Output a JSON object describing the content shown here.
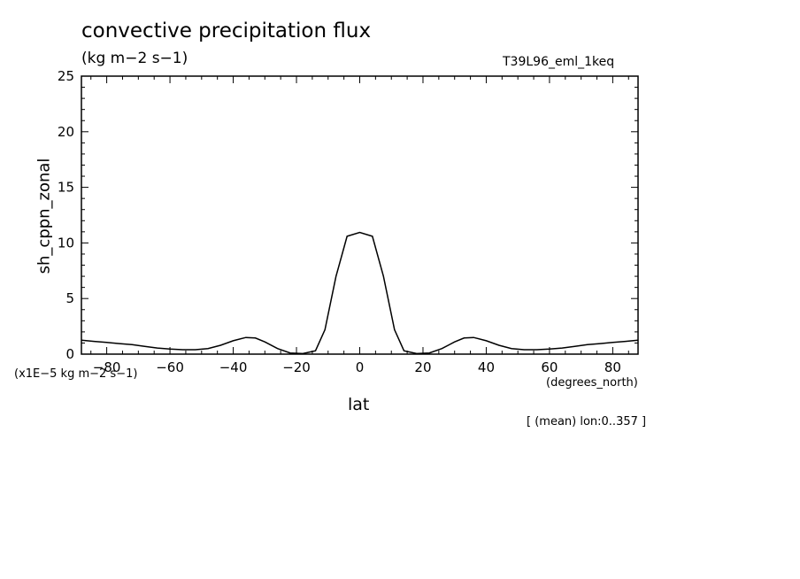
{
  "header": {
    "title": "convective precipitation flux",
    "units": "(kg m−2 s−1)",
    "run_id": "T39L96_eml_1keq"
  },
  "axes": {
    "ylabel": "sh_cppn_zonal",
    "yscale": "(x1E−5 kg m−2 s−1)",
    "xlabel": "lat",
    "xunits": "(degrees_north)"
  },
  "footnote": "[ (mean) lon:0..357 ]",
  "chart_data": {
    "type": "line",
    "title": "convective precipitation flux",
    "xlabel": "lat",
    "ylabel": "sh_cppn_zonal",
    "xlim": [
      -88,
      88
    ],
    "ylim": [
      0,
      25
    ],
    "xticks": [
      -80,
      -60,
      -40,
      -20,
      0,
      20,
      40,
      60,
      80
    ],
    "yticks": [
      0,
      5,
      10,
      15,
      20,
      25
    ],
    "grid": false,
    "series": [
      {
        "x": [
          -88,
          -84,
          -80,
          -76,
          -72,
          -68,
          -64,
          -60,
          -56,
          -52,
          -48,
          -44,
          -40,
          -36,
          -33,
          -30,
          -26,
          -22,
          -18,
          -14,
          -11,
          -7.5,
          -4,
          0,
          4,
          7.5,
          11,
          14,
          18,
          22,
          26,
          30,
          33,
          36,
          40,
          44,
          48,
          52,
          56,
          60,
          64,
          68,
          72,
          76,
          80,
          84,
          88
        ],
        "values": [
          1.25,
          1.15,
          1.05,
          0.95,
          0.85,
          0.7,
          0.55,
          0.45,
          0.4,
          0.4,
          0.5,
          0.8,
          1.2,
          1.5,
          1.45,
          1.1,
          0.5,
          0.1,
          0.05,
          0.3,
          2.2,
          7.0,
          10.6,
          10.95,
          10.6,
          7.0,
          2.2,
          0.3,
          0.05,
          0.1,
          0.5,
          1.1,
          1.45,
          1.5,
          1.2,
          0.8,
          0.5,
          0.4,
          0.4,
          0.45,
          0.55,
          0.7,
          0.85,
          0.95,
          1.05,
          1.15,
          1.25
        ]
      }
    ]
  }
}
